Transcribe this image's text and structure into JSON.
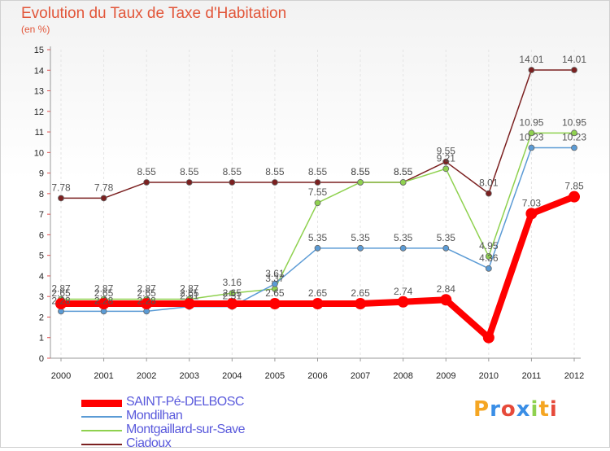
{
  "chart_data": {
    "type": "line",
    "title": "Evolution du Taux de Taxe d'Habitation",
    "subtitle": "(en %)",
    "x": [
      "2000",
      "2001",
      "2002",
      "2003",
      "2004",
      "2005",
      "2006",
      "2007",
      "2008",
      "2009",
      "2010",
      "2011",
      "2012"
    ],
    "ylim": [
      0,
      15
    ],
    "yticks": [
      0,
      1,
      2,
      3,
      4,
      5,
      6,
      7,
      8,
      9,
      10,
      11,
      12,
      13,
      14,
      15
    ],
    "series": [
      {
        "name": "SAINT-Pé-DELBOSC",
        "color": "#ff0000",
        "values": [
          2.65,
          2.65,
          2.65,
          2.65,
          2.65,
          2.65,
          2.65,
          2.65,
          2.74,
          2.84,
          1.0,
          7.03,
          7.85
        ],
        "labels": [
          "2.65",
          "2.65",
          "2.65",
          "2.65",
          "2.65",
          "2.65",
          "2.65",
          "2.65",
          "2.74",
          "2.84",
          "",
          "7.03",
          "7.85"
        ]
      },
      {
        "name": "Mondilhan",
        "color": "#5b9bd5",
        "values": [
          2.28,
          2.28,
          2.28,
          2.51,
          2.51,
          3.61,
          5.35,
          5.35,
          5.35,
          5.35,
          4.36,
          10.23,
          10.23
        ],
        "labels": [
          "2.28",
          "2.28",
          "2.28",
          "2.51",
          "2.51",
          "3.61",
          "5.35",
          "5.35",
          "5.35",
          "5.35",
          "4.36",
          "10.23",
          "10.23"
        ]
      },
      {
        "name": "Montgaillard-sur-Save",
        "color": "#8fd14f",
        "values": [
          2.87,
          2.87,
          2.87,
          2.87,
          3.16,
          3.37,
          7.55,
          8.55,
          8.55,
          9.21,
          4.95,
          10.95,
          10.95
        ],
        "labels": [
          "2.87",
          "2.87",
          "2.87",
          "2.87",
          "3.16",
          "3.37",
          "7.55",
          "8.55",
          "8.55",
          "9.21",
          "4.95",
          "10.95",
          "10.95"
        ]
      },
      {
        "name": "Ciadoux",
        "color": "#7b2020",
        "values": [
          7.78,
          7.78,
          8.55,
          8.55,
          8.55,
          8.55,
          8.55,
          8.55,
          8.55,
          9.55,
          8.01,
          14.01,
          14.01
        ],
        "labels": [
          "7.78",
          "7.78",
          "8.55",
          "8.55",
          "8.55",
          "8.55",
          "8.55",
          "8.55",
          "8.55",
          "9.55",
          "8.01",
          "14.01",
          "14.01"
        ]
      }
    ]
  },
  "brand": {
    "letters": [
      "P",
      "r",
      "o",
      "x",
      "i",
      "t",
      "i"
    ],
    "colors": [
      "#f5a623",
      "#3a8ee6",
      "#e64a3a",
      "#3a8ee6",
      "#8fd14f",
      "#f5a623",
      "#e64a3a"
    ]
  }
}
